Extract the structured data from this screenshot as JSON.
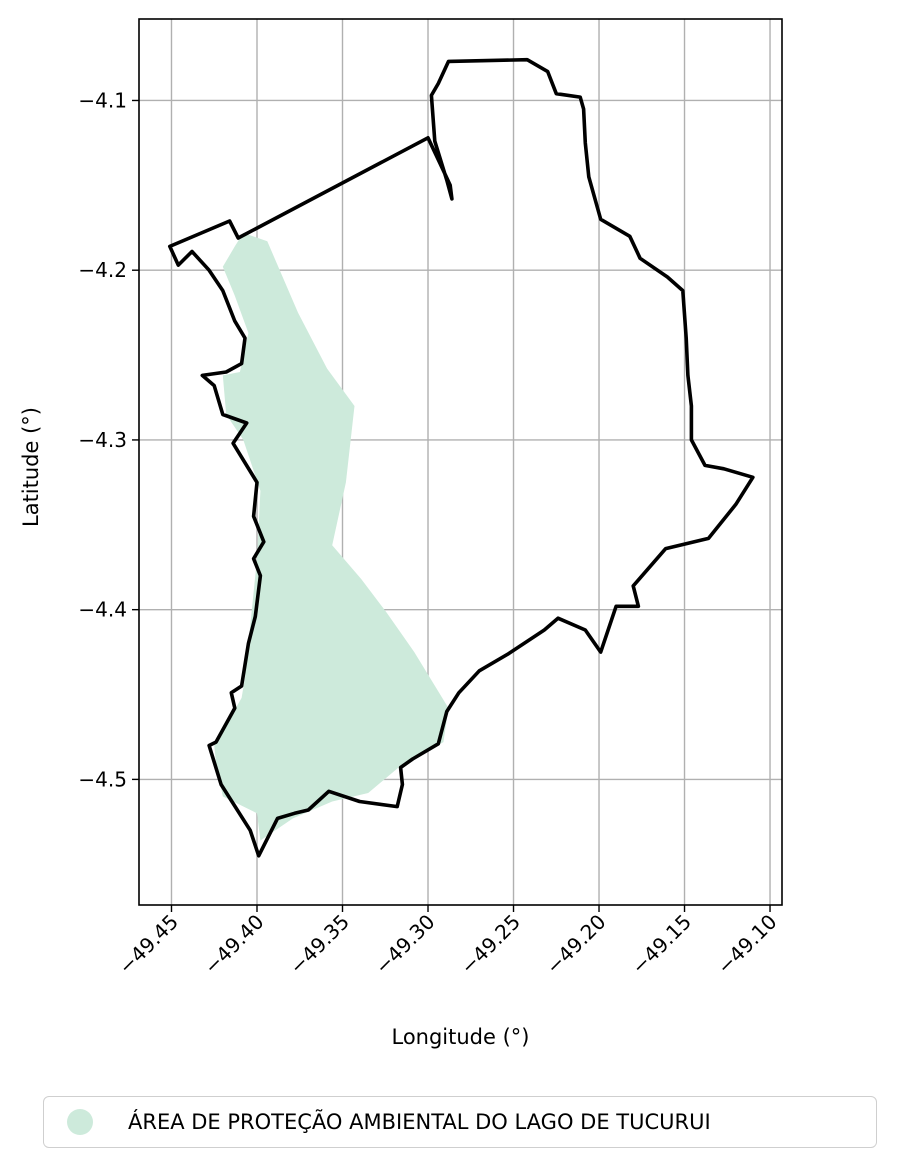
{
  "chart_data": {
    "type": "map",
    "xlabel": "Longitude (°)",
    "ylabel": "Latitude (°)",
    "xlim": [
      -49.469,
      -49.093
    ],
    "ylim": [
      -4.574,
      -4.052
    ],
    "x_ticks": [
      -49.45,
      -49.4,
      -49.35,
      -49.3,
      -49.25,
      -49.2,
      -49.15,
      -49.1
    ],
    "x_tick_labels": [
      "−49.45",
      "−49.40",
      "−49.35",
      "−49.30",
      "−49.25",
      "−49.20",
      "−49.15",
      "−49.10"
    ],
    "y_ticks": [
      -4.1,
      -4.2,
      -4.3,
      -4.4,
      -4.5
    ],
    "y_tick_labels": [
      "−4.1",
      "−4.2",
      "−4.3",
      "−4.4",
      "−4.5"
    ],
    "grid": true,
    "legend_position": "bottom-center",
    "series": [
      {
        "name": "ÁREA DE PROTEÇÃO AMBIENTAL DO LAGO DE TUCURUI",
        "color": "#cdeadb",
        "polygon": [
          [
            -49.408,
            -4.178
          ],
          [
            -49.394,
            -4.183
          ],
          [
            -49.376,
            -4.225
          ],
          [
            -49.359,
            -4.258
          ],
          [
            -49.343,
            -4.28
          ],
          [
            -49.348,
            -4.325
          ],
          [
            -49.356,
            -4.362
          ],
          [
            -49.339,
            -4.382
          ],
          [
            -49.324,
            -4.402
          ],
          [
            -49.308,
            -4.425
          ],
          [
            -49.288,
            -4.458
          ],
          [
            -49.291,
            -4.478
          ],
          [
            -49.316,
            -4.492
          ],
          [
            -49.335,
            -4.508
          ],
          [
            -49.356,
            -4.513
          ],
          [
            -49.379,
            -4.523
          ],
          [
            -49.398,
            -4.536
          ],
          [
            -49.4,
            -4.52
          ],
          [
            -49.42,
            -4.51
          ],
          [
            -49.424,
            -4.49
          ],
          [
            -49.425,
            -4.48
          ],
          [
            -49.409,
            -4.452
          ],
          [
            -49.407,
            -4.44
          ],
          [
            -49.4,
            -4.37
          ],
          [
            -49.398,
            -4.33
          ],
          [
            -49.408,
            -4.3
          ],
          [
            -49.418,
            -4.285
          ],
          [
            -49.42,
            -4.262
          ],
          [
            -49.41,
            -4.26
          ],
          [
            -49.405,
            -4.237
          ],
          [
            -49.413,
            -4.215
          ],
          [
            -49.42,
            -4.198
          ],
          [
            -49.413,
            -4.186
          ]
        ]
      },
      {
        "name": "boundary",
        "color": "#000000",
        "polygon": [
          [
            -49.451,
            -4.186
          ],
          [
            -49.416,
            -4.171
          ],
          [
            -49.411,
            -4.181
          ],
          [
            -49.3,
            -4.122
          ],
          [
            -49.293,
            -4.137
          ],
          [
            -49.287,
            -4.15
          ],
          [
            -49.286,
            -4.158
          ],
          [
            -49.289,
            -4.147
          ],
          [
            -49.296,
            -4.124
          ],
          [
            -49.298,
            -4.097
          ],
          [
            -49.294,
            -4.09
          ],
          [
            -49.288,
            -4.077
          ],
          [
            -49.242,
            -4.076
          ],
          [
            -49.23,
            -4.083
          ],
          [
            -49.225,
            -4.096
          ],
          [
            -49.211,
            -4.098
          ],
          [
            -49.209,
            -4.105
          ],
          [
            -49.208,
            -4.125
          ],
          [
            -49.206,
            -4.145
          ],
          [
            -49.199,
            -4.17
          ],
          [
            -49.182,
            -4.18
          ],
          [
            -49.176,
            -4.193
          ],
          [
            -49.16,
            -4.204
          ],
          [
            -49.151,
            -4.212
          ],
          [
            -49.149,
            -4.24
          ],
          [
            -49.148,
            -4.262
          ],
          [
            -49.146,
            -4.28
          ],
          [
            -49.146,
            -4.3
          ],
          [
            -49.138,
            -4.315
          ],
          [
            -49.127,
            -4.317
          ],
          [
            -49.11,
            -4.322
          ],
          [
            -49.12,
            -4.338
          ],
          [
            -49.136,
            -4.358
          ],
          [
            -49.161,
            -4.364
          ],
          [
            -49.18,
            -4.386
          ],
          [
            -49.177,
            -4.398
          ],
          [
            -49.19,
            -4.398
          ],
          [
            -49.199,
            -4.425
          ],
          [
            -49.208,
            -4.412
          ],
          [
            -49.224,
            -4.405
          ],
          [
            -49.232,
            -4.412
          ],
          [
            -49.253,
            -4.426
          ],
          [
            -49.27,
            -4.436
          ],
          [
            -49.282,
            -4.449
          ],
          [
            -49.289,
            -4.46
          ],
          [
            -49.294,
            -4.479
          ],
          [
            -49.309,
            -4.488
          ],
          [
            -49.316,
            -4.493
          ],
          [
            -49.315,
            -4.503
          ],
          [
            -49.318,
            -4.516
          ],
          [
            -49.34,
            -4.513
          ],
          [
            -49.358,
            -4.507
          ],
          [
            -49.37,
            -4.518
          ],
          [
            -49.378,
            -4.52
          ],
          [
            -49.388,
            -4.523
          ],
          [
            -49.399,
            -4.545
          ],
          [
            -49.404,
            -4.53
          ],
          [
            -49.421,
            -4.503
          ],
          [
            -49.428,
            -4.48
          ],
          [
            -49.424,
            -4.478
          ],
          [
            -49.413,
            -4.458
          ],
          [
            -49.415,
            -4.449
          ],
          [
            -49.409,
            -4.445
          ],
          [
            -49.405,
            -4.42
          ],
          [
            -49.401,
            -4.404
          ],
          [
            -49.398,
            -4.38
          ],
          [
            -49.402,
            -4.37
          ],
          [
            -49.396,
            -4.36
          ],
          [
            -49.402,
            -4.345
          ],
          [
            -49.4,
            -4.325
          ],
          [
            -49.414,
            -4.302
          ],
          [
            -49.406,
            -4.29
          ],
          [
            -49.42,
            -4.285
          ],
          [
            -49.425,
            -4.268
          ],
          [
            -49.432,
            -4.262
          ],
          [
            -49.418,
            -4.26
          ],
          [
            -49.409,
            -4.255
          ],
          [
            -49.407,
            -4.24
          ],
          [
            -49.413,
            -4.23
          ],
          [
            -49.42,
            -4.212
          ],
          [
            -49.428,
            -4.2
          ],
          [
            -49.438,
            -4.189
          ],
          [
            -49.446,
            -4.197
          ]
        ]
      }
    ]
  }
}
